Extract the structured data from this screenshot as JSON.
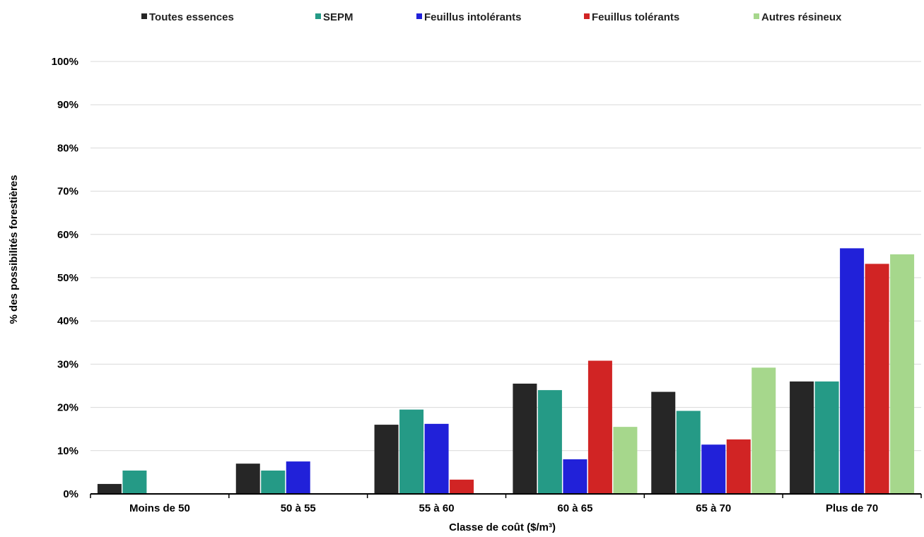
{
  "chart_data": {
    "type": "bar",
    "categories": [
      "Moins de 50",
      "50 à 55",
      "55 à 60",
      "60 à 65",
      "65 à 70",
      "Plus de 70"
    ],
    "series": [
      {
        "name": "Toutes essences",
        "color": "#262626",
        "values": [
          2.3,
          7.0,
          16.0,
          25.5,
          23.6,
          26.0
        ]
      },
      {
        "name": "SEPM",
        "color": "#259a86",
        "values": [
          5.4,
          5.4,
          19.5,
          24.0,
          19.2,
          26.0
        ]
      },
      {
        "name": "Feuillus intolérants",
        "color": "#2121d9",
        "values": [
          0,
          7.5,
          16.2,
          8.0,
          11.4,
          56.8
        ]
      },
      {
        "name": "Feuillus tolérants",
        "color": "#d12424",
        "values": [
          0,
          0,
          3.3,
          30.8,
          12.6,
          53.2
        ]
      },
      {
        "name": "Autres résineux",
        "color": "#a6d78c",
        "values": [
          0,
          0,
          0,
          15.5,
          29.2,
          55.4
        ]
      }
    ],
    "xlabel": "Classe de coût ($/m³)",
    "ylabel": "% des possibilités forestières",
    "ylim": [
      0,
      100
    ],
    "yticks": [
      "0%",
      "10%",
      "20%",
      "30%",
      "40%",
      "50%",
      "60%",
      "70%",
      "80%",
      "90%",
      "100%"
    ],
    "grid": true,
    "legend_position": "top"
  }
}
